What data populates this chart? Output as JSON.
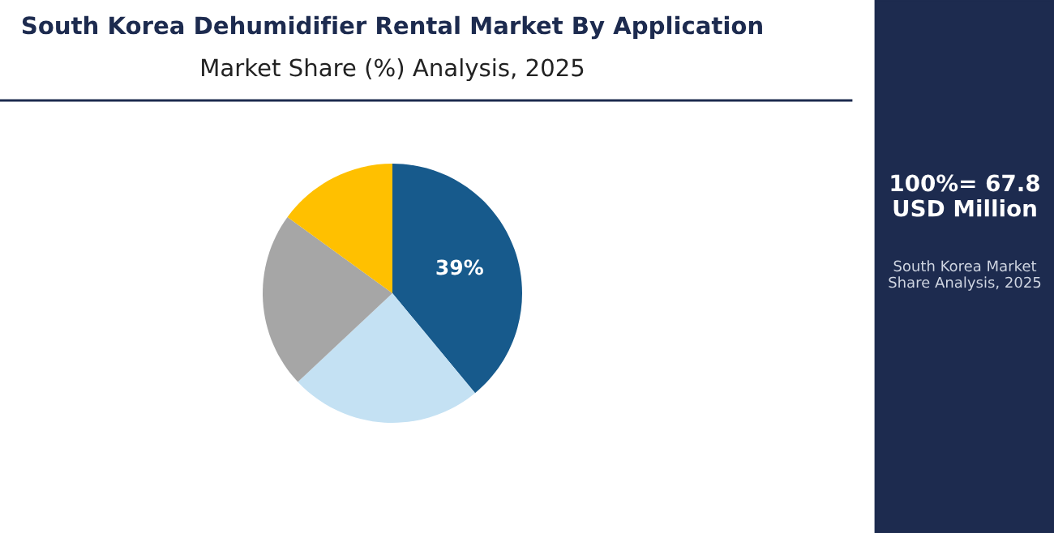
{
  "chart_data": {
    "type": "pie",
    "title": "South Korea Dehumidifier Rental Market By Application",
    "subtitle": "Market Share (%) Analysis, 2025",
    "categories": [
      null,
      null,
      null,
      null
    ],
    "values": [
      39,
      24,
      22,
      15
    ],
    "colors": [
      "#175a8c",
      "#c4e1f3",
      "#a6a6a6",
      "#ffc000"
    ],
    "value_labels": [
      "39%",
      null,
      null,
      null
    ],
    "annotations": [
      "100%= 67.8 USD Million",
      "South Korea Market Share Analysis, 2025"
    ]
  }
}
